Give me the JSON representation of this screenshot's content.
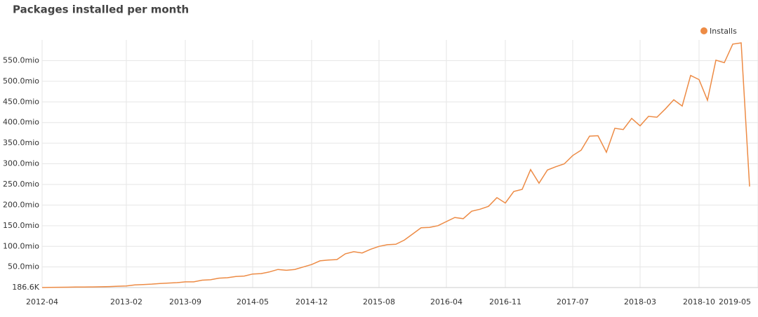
{
  "chart_data": {
    "type": "line",
    "title": "Packages installed per month",
    "x": [
      "2012-04",
      "2012-05",
      "2012-06",
      "2012-07",
      "2012-08",
      "2012-09",
      "2012-10",
      "2012-11",
      "2012-12",
      "2013-01",
      "2013-02",
      "2013-03",
      "2013-04",
      "2013-05",
      "2013-06",
      "2013-07",
      "2013-08",
      "2013-09",
      "2013-10",
      "2013-11",
      "2013-12",
      "2014-01",
      "2014-02",
      "2014-03",
      "2014-04",
      "2014-05",
      "2014-06",
      "2014-07",
      "2014-08",
      "2014-09",
      "2014-10",
      "2014-11",
      "2014-12",
      "2015-01",
      "2015-02",
      "2015-03",
      "2015-04",
      "2015-05",
      "2015-06",
      "2015-07",
      "2015-08",
      "2015-09",
      "2015-10",
      "2015-11",
      "2015-12",
      "2016-01",
      "2016-02",
      "2016-03",
      "2016-04",
      "2016-05",
      "2016-06",
      "2016-07",
      "2016-08",
      "2016-09",
      "2016-10",
      "2016-11",
      "2016-12",
      "2017-01",
      "2017-02",
      "2017-03",
      "2017-04",
      "2017-05",
      "2017-06",
      "2017-07",
      "2017-08",
      "2017-09",
      "2017-10",
      "2017-11",
      "2017-12",
      "2018-01",
      "2018-02",
      "2018-03",
      "2018-04",
      "2018-05",
      "2018-06",
      "2018-07",
      "2018-08",
      "2018-09",
      "2018-10",
      "2018-11",
      "2018-12",
      "2019-01",
      "2019-02",
      "2019-03",
      "2019-04"
    ],
    "series": [
      {
        "name": "Installs",
        "color": "#ed8b45",
        "values": [
          0.19,
          0.5,
          0.8,
          1.0,
          1.3,
          1.5,
          1.8,
          2.0,
          2.5,
          3.5,
          4.0,
          6.5,
          7.5,
          8.5,
          10,
          11,
          12,
          14,
          14,
          18,
          19,
          23,
          24,
          27,
          28,
          33,
          34,
          38,
          44,
          42,
          44,
          50,
          56,
          65,
          67,
          68,
          82,
          87,
          84,
          93,
          100,
          104,
          105,
          115,
          130,
          145,
          146,
          150,
          160,
          170,
          167,
          185,
          190,
          197,
          218,
          205,
          233,
          238,
          286,
          253,
          285,
          293,
          300,
          320,
          333,
          367,
          368,
          328,
          386,
          383,
          410,
          392,
          415,
          413,
          433,
          455,
          440,
          514,
          504,
          454,
          551,
          545,
          590,
          593,
          245
        ]
      }
    ],
    "xlim": [
      "2012-04",
      "2019-04"
    ],
    "xticks": [
      "2012-04",
      "2013-02",
      "2013-09",
      "2014-05",
      "2014-12",
      "2015-08",
      "2016-04",
      "2016-11",
      "2017-07",
      "2018-03",
      "2018-10",
      "2019-05"
    ],
    "ylim": [
      0.1866,
      600
    ],
    "yticks": [
      {
        "value": 0.1866,
        "label": "186.6K"
      },
      {
        "value": 50,
        "label": "50.0mio"
      },
      {
        "value": 100,
        "label": "100.0mio"
      },
      {
        "value": 150,
        "label": "150.0mio"
      },
      {
        "value": 200,
        "label": "200.0mio"
      },
      {
        "value": 250,
        "label": "250.0mio"
      },
      {
        "value": 300,
        "label": "300.0mio"
      },
      {
        "value": 350,
        "label": "350.0mio"
      },
      {
        "value": 400,
        "label": "400.0mio"
      },
      {
        "value": 450,
        "label": "450.0mio"
      },
      {
        "value": 500,
        "label": "500.0mio"
      },
      {
        "value": 550,
        "label": "550.0mio"
      }
    ],
    "grid": true,
    "legend": "top-right"
  }
}
